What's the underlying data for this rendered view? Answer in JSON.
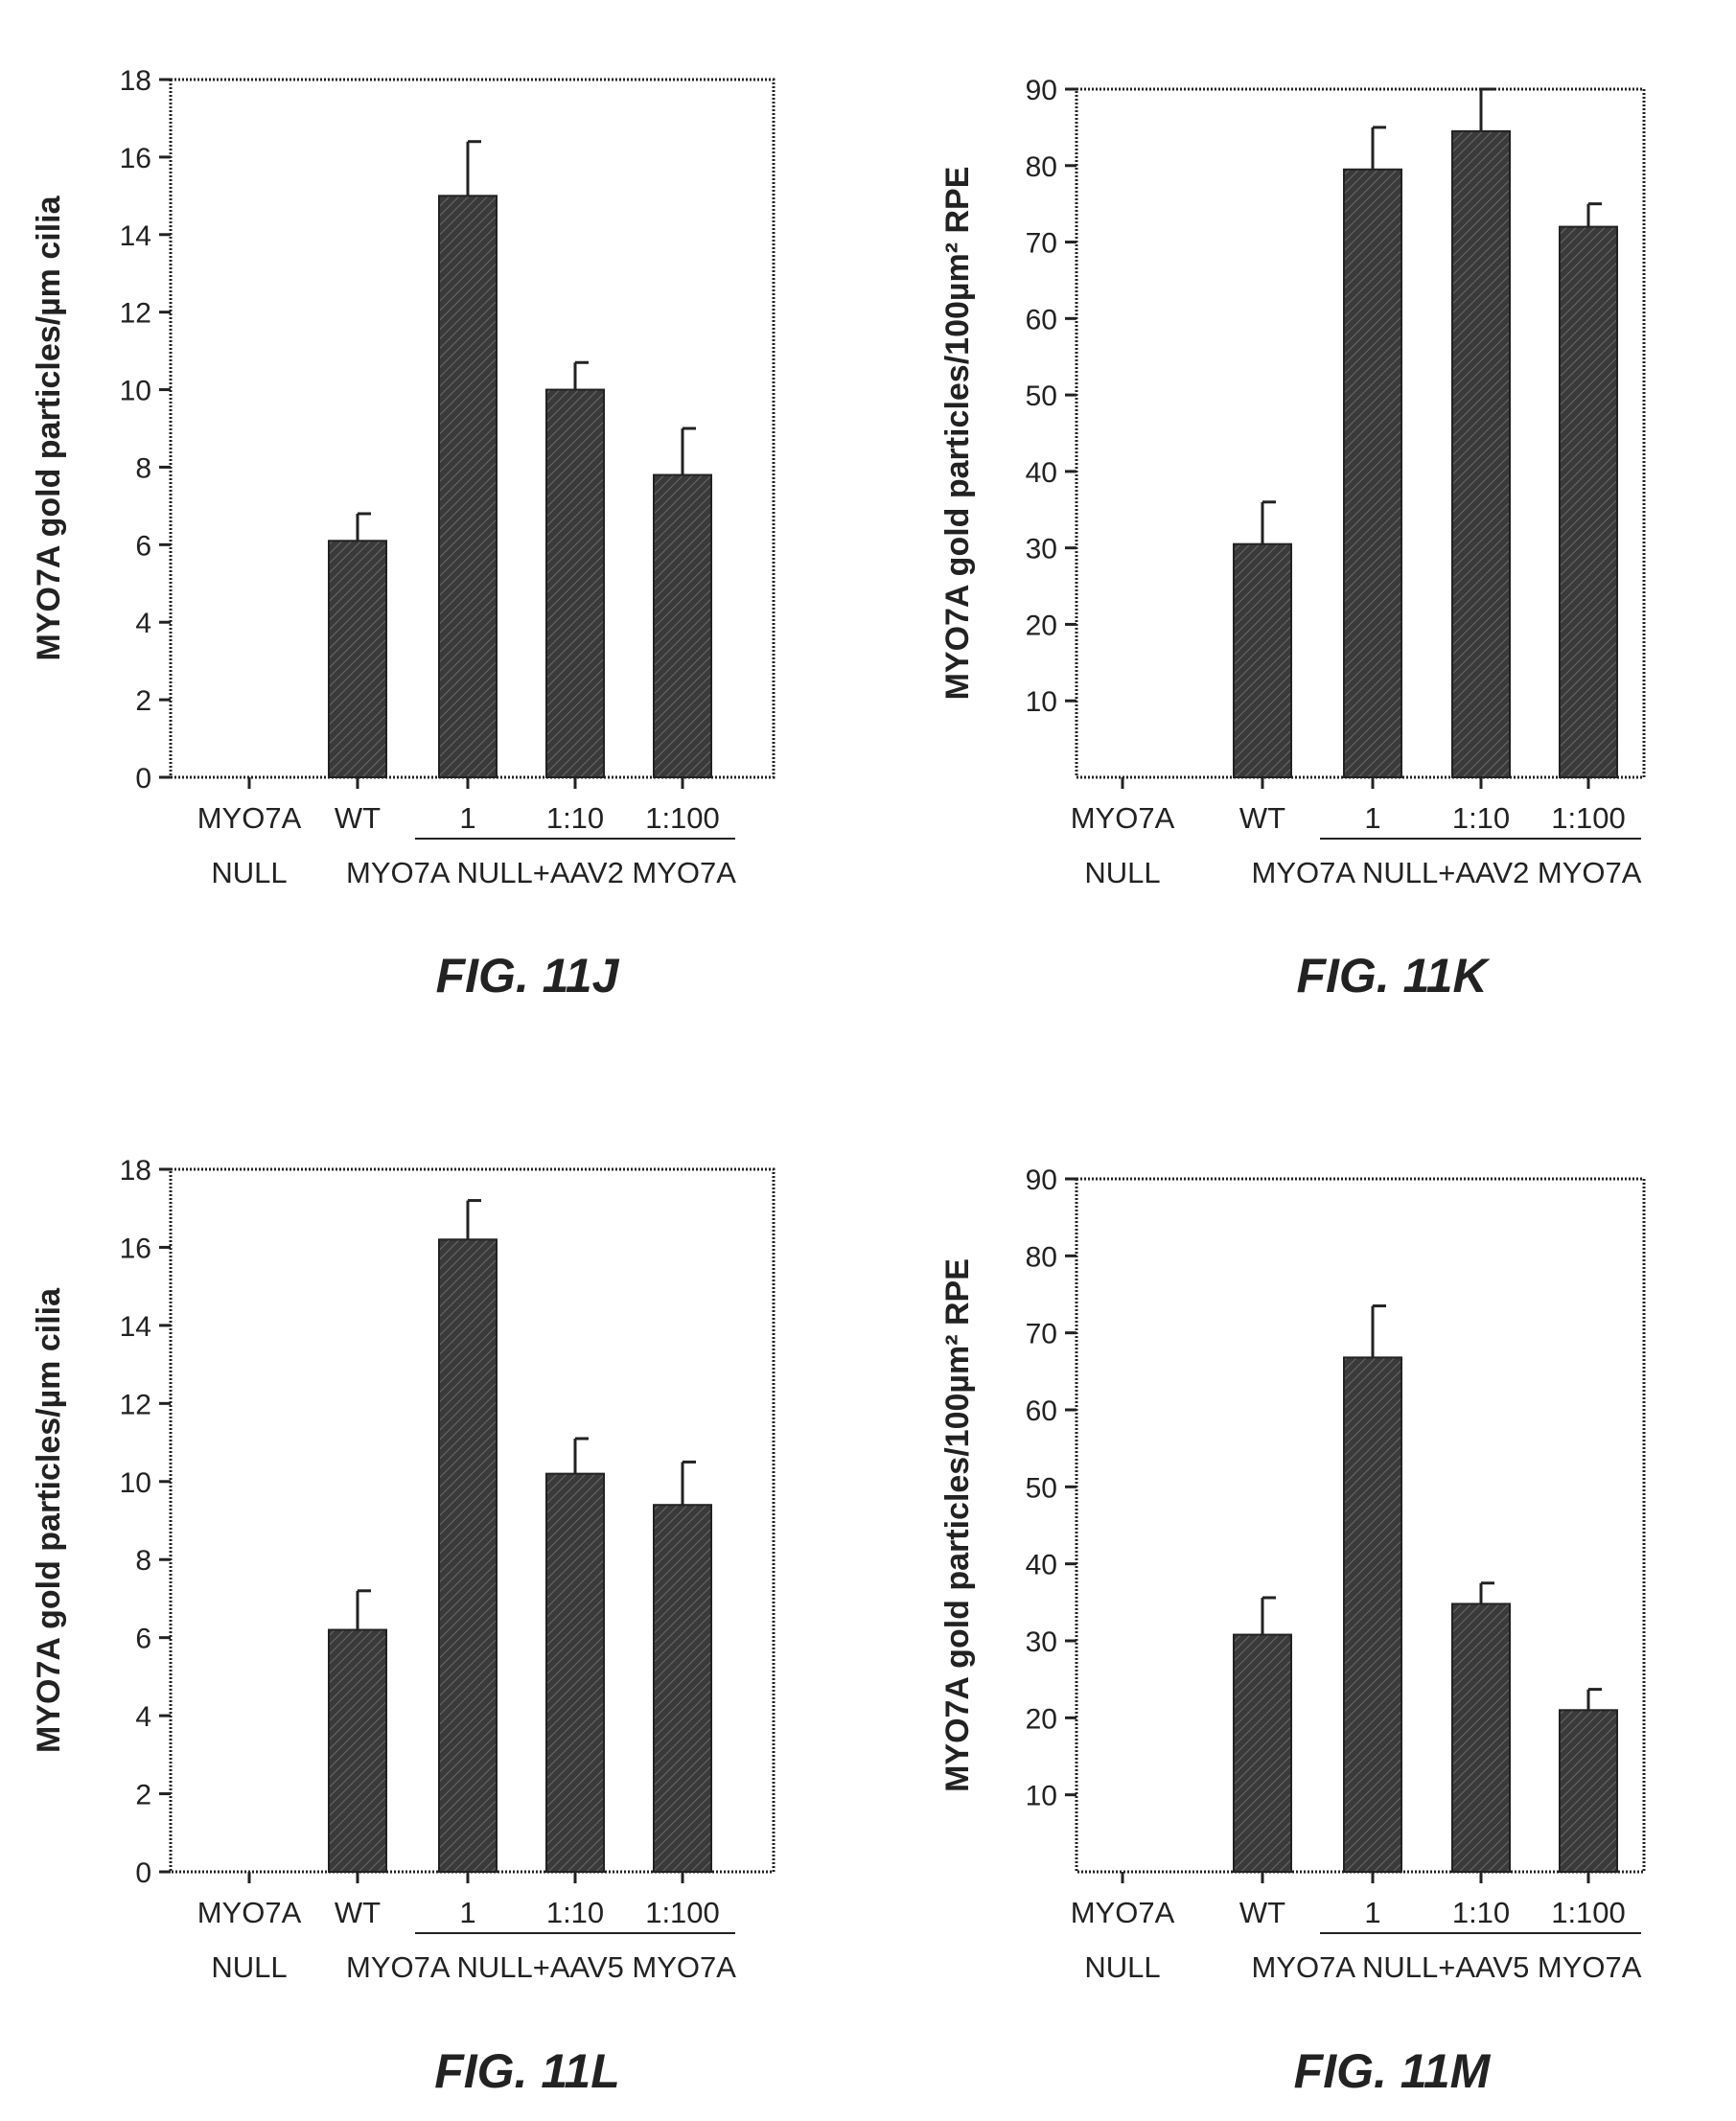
{
  "colors": {
    "bar": "#3a3a3a",
    "axis": "#222222",
    "background": "#ffffff"
  },
  "chart_data": [
    {
      "type": "bar",
      "caption": "FIG. 11J",
      "ylabel": "MYO7A gold particles/µm cilia",
      "ylim": [
        0,
        18
      ],
      "yticks": [
        "0",
        "2",
        "4",
        "6",
        "8",
        "10",
        "12",
        "14",
        "16",
        "18"
      ],
      "categories": [
        "MYO7A",
        "WT",
        "1",
        "1:10",
        "1:100"
      ],
      "categories_line2_left": "NULL",
      "group_label": "MYO7A NULL+AAV2 MYO7A",
      "values": [
        0,
        6.1,
        15.0,
        10.0,
        7.8
      ],
      "errors": [
        0,
        0.7,
        1.4,
        0.7,
        1.2
      ],
      "grid": false
    },
    {
      "type": "bar",
      "caption": "FIG. 11K",
      "ylabel": "MYO7A gold particles/100µm² RPE",
      "ylim": [
        0,
        90
      ],
      "yticks": [
        "10",
        "20",
        "30",
        "40",
        "50",
        "60",
        "70",
        "80",
        "90"
      ],
      "categories": [
        "MYO7A",
        "WT",
        "1",
        "1:10",
        "1:100"
      ],
      "categories_line2_left": "NULL",
      "group_label": "MYO7A NULL+AAV2 MYO7A",
      "values": [
        0,
        30.5,
        79.5,
        84.5,
        72.0
      ],
      "errors": [
        0,
        5.5,
        5.5,
        5.5,
        3.0
      ],
      "grid": false
    },
    {
      "type": "bar",
      "caption": "FIG. 11L",
      "ylabel": "MYO7A gold particles/µm cilia",
      "ylim": [
        0,
        18
      ],
      "yticks": [
        "0",
        "2",
        "4",
        "6",
        "8",
        "10",
        "12",
        "14",
        "16",
        "18"
      ],
      "categories": [
        "MYO7A",
        "WT",
        "1",
        "1:10",
        "1:100"
      ],
      "categories_line2_left": "NULL",
      "group_label": "MYO7A NULL+AAV5 MYO7A",
      "values": [
        0,
        6.2,
        16.2,
        10.2,
        9.4
      ],
      "errors": [
        0,
        1.0,
        1.0,
        0.9,
        1.1
      ],
      "grid": false
    },
    {
      "type": "bar",
      "caption": "FIG. 11M",
      "ylabel": "MYO7A gold particles/100µm² RPE",
      "ylim": [
        0,
        90
      ],
      "yticks": [
        "10",
        "20",
        "30",
        "40",
        "50",
        "60",
        "70",
        "80",
        "90"
      ],
      "categories": [
        "MYO7A",
        "WT",
        "1",
        "1:10",
        "1:100"
      ],
      "categories_line2_left": "NULL",
      "group_label": "MYO7A NULL+AAV5 MYO7A",
      "values": [
        0,
        30.8,
        66.8,
        34.8,
        21.0
      ],
      "errors": [
        0,
        4.8,
        6.7,
        2.7,
        2.7
      ],
      "grid": false
    }
  ]
}
